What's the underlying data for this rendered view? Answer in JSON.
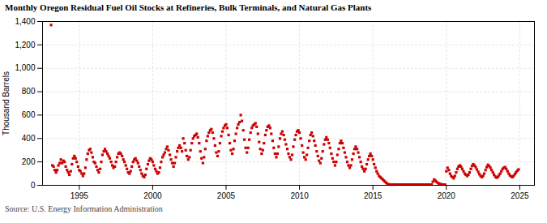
{
  "chart_data": {
    "type": "scatter",
    "title": "Monthly Oregon Residual Fuel Oil Stocks at Refineries, Bulk Terminals, and Natural Gas Plants",
    "ylabel": "Thousand Barrels",
    "annotation": "Source: U.S. Energy Information Administration",
    "xlim": [
      1992.5,
      2026.0
    ],
    "xticks": [
      1995,
      2000,
      2005,
      2010,
      2015,
      2020,
      2025
    ],
    "ylim": [
      0,
      1400
    ],
    "yticks": [
      0,
      200,
      400,
      600,
      800,
      {
        "value": 1000,
        "label": "1,000"
      },
      {
        "value": 1200,
        "label": "1,200"
      },
      {
        "value": 1400,
        "label": "1,400"
      }
    ],
    "grid": true,
    "series": [
      {
        "type": "scatter",
        "marker": "square",
        "color": "#cc0000",
        "x": [
          1993.08,
          1993.17,
          1993.25,
          1993.33,
          1993.42,
          1993.5,
          1993.58,
          1993.67,
          1993.75,
          1993.83,
          1993.92,
          1994.0,
          1994.08,
          1994.17,
          1994.25,
          1994.33,
          1994.42,
          1994.5,
          1994.58,
          1994.67,
          1994.75,
          1994.83,
          1994.92,
          1995.0,
          1995.08,
          1995.17,
          1995.25,
          1995.33,
          1995.42,
          1995.5,
          1995.58,
          1995.67,
          1995.75,
          1995.83,
          1995.92,
          1996.0,
          1996.08,
          1996.17,
          1996.25,
          1996.33,
          1996.42,
          1996.5,
          1996.58,
          1996.67,
          1996.75,
          1996.83,
          1996.92,
          1997.0,
          1997.08,
          1997.17,
          1997.25,
          1997.33,
          1997.42,
          1997.5,
          1997.58,
          1997.67,
          1997.75,
          1997.83,
          1997.92,
          1998.0,
          1998.08,
          1998.17,
          1998.25,
          1998.33,
          1998.42,
          1998.5,
          1998.58,
          1998.67,
          1998.75,
          1998.83,
          1998.92,
          1999.0,
          1999.08,
          1999.17,
          1999.25,
          1999.33,
          1999.42,
          1999.5,
          1999.58,
          1999.67,
          1999.75,
          1999.83,
          1999.92,
          2000.0,
          2000.08,
          2000.17,
          2000.25,
          2000.33,
          2000.42,
          2000.5,
          2000.58,
          2000.67,
          2000.75,
          2000.83,
          2000.92,
          2001.0,
          2001.08,
          2001.17,
          2001.25,
          2001.33,
          2001.42,
          2001.5,
          2001.58,
          2001.67,
          2001.75,
          2001.83,
          2001.92,
          2002.0,
          2002.08,
          2002.17,
          2002.25,
          2002.33,
          2002.42,
          2002.5,
          2002.58,
          2002.67,
          2002.75,
          2002.83,
          2002.92,
          2003.0,
          2003.08,
          2003.17,
          2003.25,
          2003.33,
          2003.42,
          2003.5,
          2003.58,
          2003.67,
          2003.75,
          2003.83,
          2003.92,
          2004.0,
          2004.08,
          2004.17,
          2004.25,
          2004.33,
          2004.42,
          2004.5,
          2004.58,
          2004.67,
          2004.75,
          2004.83,
          2004.92,
          2005.0,
          2005.08,
          2005.17,
          2005.25,
          2005.33,
          2005.42,
          2005.5,
          2005.58,
          2005.67,
          2005.75,
          2005.83,
          2005.92,
          2006.0,
          2006.08,
          2006.17,
          2006.25,
          2006.33,
          2006.42,
          2006.5,
          2006.58,
          2006.67,
          2006.75,
          2006.83,
          2006.92,
          2007.0,
          2007.08,
          2007.17,
          2007.25,
          2007.33,
          2007.42,
          2007.5,
          2007.58,
          2007.67,
          2007.75,
          2007.83,
          2007.92,
          2008.0,
          2008.08,
          2008.17,
          2008.25,
          2008.33,
          2008.42,
          2008.5,
          2008.58,
          2008.67,
          2008.75,
          2008.83,
          2008.92,
          2009.0,
          2009.08,
          2009.17,
          2009.25,
          2009.33,
          2009.42,
          2009.5,
          2009.58,
          2009.67,
          2009.75,
          2009.83,
          2009.92,
          2010.0,
          2010.08,
          2010.17,
          2010.25,
          2010.33,
          2010.42,
          2010.5,
          2010.58,
          2010.67,
          2010.75,
          2010.83,
          2010.92,
          2011.0,
          2011.08,
          2011.17,
          2011.25,
          2011.33,
          2011.42,
          2011.5,
          2011.58,
          2011.67,
          2011.75,
          2011.83,
          2011.92,
          2012.0,
          2012.08,
          2012.17,
          2012.25,
          2012.33,
          2012.42,
          2012.5,
          2012.58,
          2012.67,
          2012.75,
          2012.83,
          2012.92,
          2013.0,
          2013.08,
          2013.17,
          2013.25,
          2013.33,
          2013.42,
          2013.5,
          2013.58,
          2013.67,
          2013.75,
          2013.83,
          2013.92,
          2014.0,
          2014.08,
          2014.17,
          2014.25,
          2014.33,
          2014.42,
          2014.5,
          2014.58,
          2014.67,
          2014.75,
          2014.83,
          2014.92,
          2015.0,
          2015.08,
          2015.17,
          2015.25,
          2015.33,
          2015.42,
          2015.5,
          2015.58,
          2015.67,
          2015.75,
          2015.83,
          2015.92,
          2016.0,
          2016.08,
          2016.17,
          2016.25,
          2016.33,
          2016.42,
          2016.5,
          2016.58,
          2016.67,
          2016.75,
          2016.83,
          2016.92,
          2017.0,
          2017.08,
          2017.17,
          2017.25,
          2017.33,
          2017.42,
          2017.5,
          2017.58,
          2017.67,
          2017.75,
          2017.83,
          2017.92,
          2018.0,
          2018.08,
          2018.17,
          2018.25,
          2018.33,
          2018.42,
          2018.5,
          2018.58,
          2018.67,
          2018.75,
          2018.83,
          2018.92,
          2019.0,
          2019.08,
          2019.17,
          2019.25,
          2019.33,
          2019.42,
          2019.5,
          2019.58,
          2019.67,
          2019.75,
          2019.83,
          2019.92,
          2020.0,
          2020.08,
          2020.17,
          2020.25,
          2020.33,
          2020.42,
          2020.5,
          2020.58,
          2020.67,
          2020.75,
          2020.83,
          2020.92,
          2021.0,
          2021.08,
          2021.17,
          2021.25,
          2021.33,
          2021.42,
          2021.5,
          2021.58,
          2021.67,
          2021.75,
          2021.83,
          2021.92,
          2022.0,
          2022.08,
          2022.17,
          2022.25,
          2022.33,
          2022.42,
          2022.5,
          2022.58,
          2022.67,
          2022.75,
          2022.83,
          2022.92,
          2023.0,
          2023.08,
          2023.17,
          2023.25,
          2023.33,
          2023.42,
          2023.5,
          2023.58,
          2023.67,
          2023.75,
          2023.83,
          2023.92,
          2024.0,
          2024.08,
          2024.17,
          2024.25,
          2024.33,
          2024.42,
          2024.5,
          2024.58,
          2024.67,
          2024.75,
          2024.83,
          2024.92
        ],
        "values": [
          1370,
          170,
          160,
          130,
          110,
          130,
          170,
          190,
          220,
          190,
          210,
          200,
          160,
          130,
          110,
          90,
          120,
          180,
          230,
          250,
          230,
          200,
          160,
          130,
          120,
          100,
          80,
          100,
          150,
          220,
          270,
          300,
          310,
          280,
          240,
          200,
          190,
          160,
          130,
          110,
          140,
          200,
          260,
          290,
          310,
          290,
          270,
          250,
          230,
          200,
          170,
          150,
          160,
          200,
          240,
          270,
          280,
          270,
          250,
          220,
          200,
          170,
          140,
          110,
          100,
          120,
          160,
          200,
          220,
          230,
          210,
          190,
          160,
          130,
          100,
          80,
          70,
          90,
          140,
          180,
          210,
          230,
          220,
          200,
          170,
          140,
          120,
          100,
          110,
          150,
          200,
          240,
          260,
          280,
          310,
          330,
          300,
          260,
          220,
          190,
          160,
          190,
          240,
          290,
          320,
          340,
          320,
          290,
          400,
          360,
          300,
          250,
          220,
          240,
          300,
          360,
          400,
          420,
          430,
          440,
          410,
          360,
          290,
          230,
          190,
          240,
          310,
          380,
          420,
          450,
          470,
          480,
          450,
          400,
          340,
          280,
          250,
          290,
          360,
          420,
          460,
          490,
          510,
          520,
          490,
          430,
          360,
          300,
          270,
          310,
          380,
          440,
          490,
          520,
          540,
          600,
          550,
          470,
          390,
          320,
          280,
          320,
          390,
          450,
          490,
          510,
          520,
          530,
          500,
          440,
          370,
          310,
          270,
          300,
          360,
          430,
          470,
          500,
          510,
          490,
          440,
          380,
          320,
          270,
          240,
          270,
          330,
          400,
          440,
          460,
          430,
          390,
          350,
          310,
          270,
          240,
          220,
          260,
          330,
          390,
          430,
          460,
          470,
          450,
          400,
          340,
          280,
          240,
          220,
          260,
          320,
          380,
          430,
          450,
          420,
          380,
          340,
          290,
          250,
          210,
          190,
          230,
          290,
          350,
          390,
          410,
          390,
          360,
          320,
          270,
          230,
          200,
          170,
          200,
          260,
          310,
          360,
          380,
          360,
          320,
          280,
          240,
          200,
          170,
          150,
          170,
          220,
          270,
          310,
          330,
          310,
          280,
          240,
          200,
          160,
          140,
          120,
          140,
          180,
          220,
          250,
          270,
          250,
          220,
          180,
          150,
          120,
          100,
          80,
          70,
          60,
          50,
          40,
          30,
          20,
          10,
          8,
          6,
          5,
          5,
          5,
          5,
          5,
          5,
          5,
          5,
          5,
          5,
          5,
          5,
          5,
          5,
          5,
          5,
          5,
          5,
          5,
          5,
          5,
          5,
          5,
          5,
          5,
          5,
          5,
          5,
          5,
          5,
          5,
          5,
          5,
          5,
          30,
          50,
          40,
          30,
          20,
          15,
          10,
          8,
          6,
          5,
          5,
          120,
          150,
          130,
          100,
          80,
          70,
          60,
          80,
          110,
          140,
          160,
          170,
          160,
          140,
          120,
          100,
          90,
          80,
          90,
          110,
          140,
          165,
          180,
          170,
          155,
          135,
          115,
          95,
          80,
          70,
          80,
          100,
          130,
          155,
          175,
          165,
          150,
          130,
          110,
          90,
          75,
          65,
          70,
          85,
          100,
          120,
          140,
          150,
          155,
          140,
          120,
          100,
          85,
          75,
          70,
          80,
          95,
          110,
          125,
          135
        ]
      },
      {
        "type": "line",
        "color": "#cc0000",
        "x": [
          2016.0,
          2019.0
        ],
        "values": [
          5,
          5
        ]
      }
    ]
  }
}
